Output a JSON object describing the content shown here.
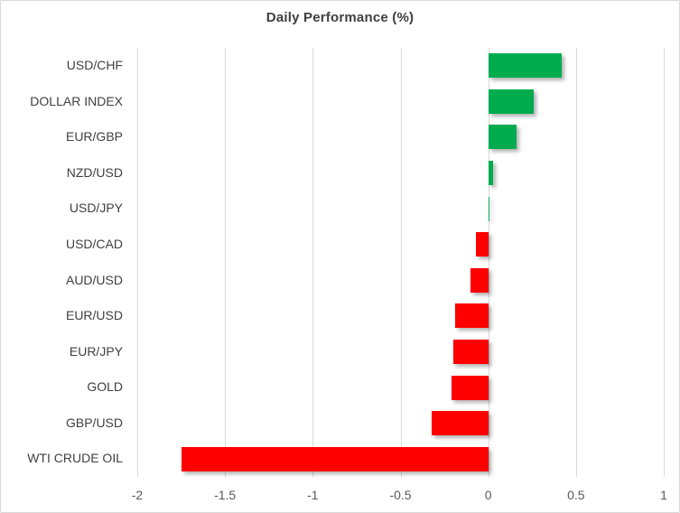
{
  "chart_data": {
    "type": "bar",
    "orientation": "horizontal",
    "title": "Daily Performance (%)",
    "categories": [
      "USD/CHF",
      "DOLLAR INDEX",
      "EUR/GBP",
      "NZD/USD",
      "USD/JPY",
      "USD/CAD",
      "AUD/USD",
      "EUR/USD",
      "EUR/JPY",
      "GOLD",
      "GBP/USD",
      "WTI CRUDE OIL"
    ],
    "values": [
      0.42,
      0.26,
      0.16,
      0.03,
      0.0,
      -0.07,
      -0.1,
      -0.19,
      -0.2,
      -0.21,
      -0.32,
      -1.75
    ],
    "xlabel": "",
    "ylabel": "",
    "xlim": [
      -2,
      1
    ],
    "xticks": [
      -2,
      -1.5,
      -1,
      -0.5,
      0,
      0.5,
      1
    ],
    "xtick_labels": [
      "-2",
      "-1.5",
      "-1",
      "-0.5",
      "0",
      "0.5",
      "1"
    ],
    "grid": "vertical-on",
    "legend": "none",
    "colors": {
      "positive_bar": "#00ac4e",
      "negative_bar": "#fe0000",
      "gridline": "#d9d9d9",
      "title_text": "#3f3f3f",
      "category_text": "#404040",
      "tick_text": "#595959",
      "frame_border": "#d9d9d9",
      "background": "#ffffff"
    }
  }
}
